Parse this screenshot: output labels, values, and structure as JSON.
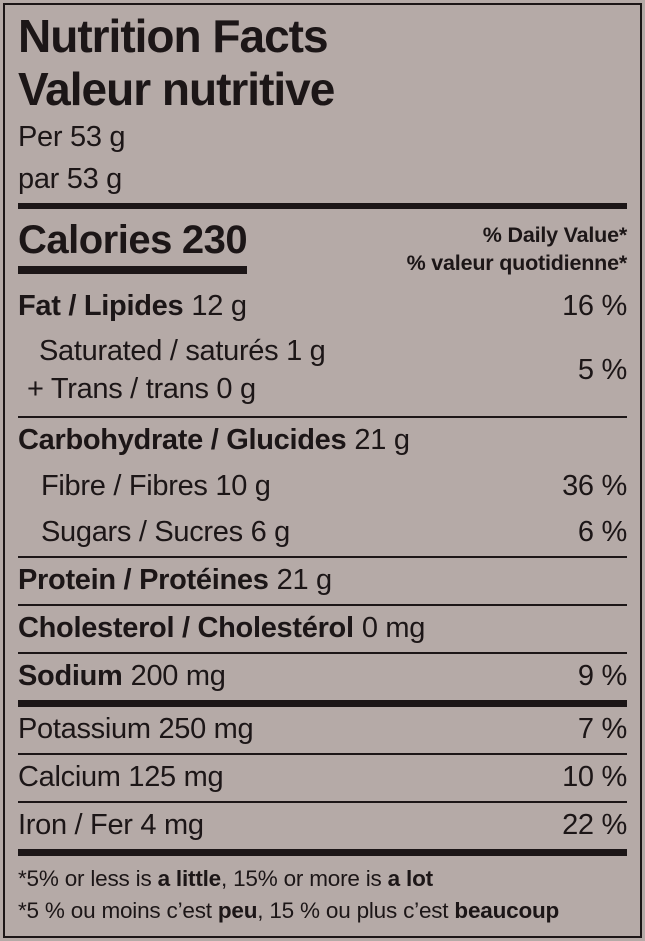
{
  "colors": {
    "background": "#b5aaa7",
    "ink": "#1c1617"
  },
  "label": {
    "title_en": "Nutrition Facts",
    "title_fr": "Valeur nutritive",
    "serving_en": "Per 53 g",
    "serving_fr": "par 53 g",
    "calories_label": "Calories",
    "calories_value": "230",
    "dv_header_en": "% Daily Value*",
    "dv_header_fr": "% valeur quotidienne*",
    "rows": [
      {
        "bold": "Fat / Lipides",
        "rest": "12 g",
        "dv": "16 %"
      },
      {
        "line1": "Saturated / saturés 1 g",
        "line2": "+ Trans / trans 0 g",
        "dv": "5 %"
      },
      {
        "bold": "Carbohydrate / Glucides",
        "rest": "21 g",
        "dv": ""
      },
      {
        "bold": "",
        "rest": "Fibre / Fibres 10 g",
        "dv": "36 %"
      },
      {
        "bold": "",
        "rest": "Sugars / Sucres 6 g",
        "dv": "6 %"
      },
      {
        "bold": "Protein / Protéines",
        "rest": "21 g",
        "dv": ""
      },
      {
        "bold": "Cholesterol / Cholestérol",
        "rest": "0 mg",
        "dv": ""
      },
      {
        "bold": "Sodium",
        "rest": "200 mg",
        "dv": "9 %"
      },
      {
        "bold": "",
        "rest": "Potassium 250 mg",
        "dv": "7 %"
      },
      {
        "bold": "",
        "rest": "Calcium 125 mg",
        "dv": "10 %"
      },
      {
        "bold": "",
        "rest": "Iron / Fer 4 mg",
        "dv": "22 %"
      }
    ],
    "footnote_en": {
      "t1": "*5% or less is ",
      "b1": "a little",
      "t2": ", 15% or more is ",
      "b2": "a lot"
    },
    "footnote_fr": {
      "t1": "*5 % ou moins c’est ",
      "b1": "peu",
      "t2": ", 15 % ou plus c’est ",
      "b2": "beaucoup"
    }
  }
}
